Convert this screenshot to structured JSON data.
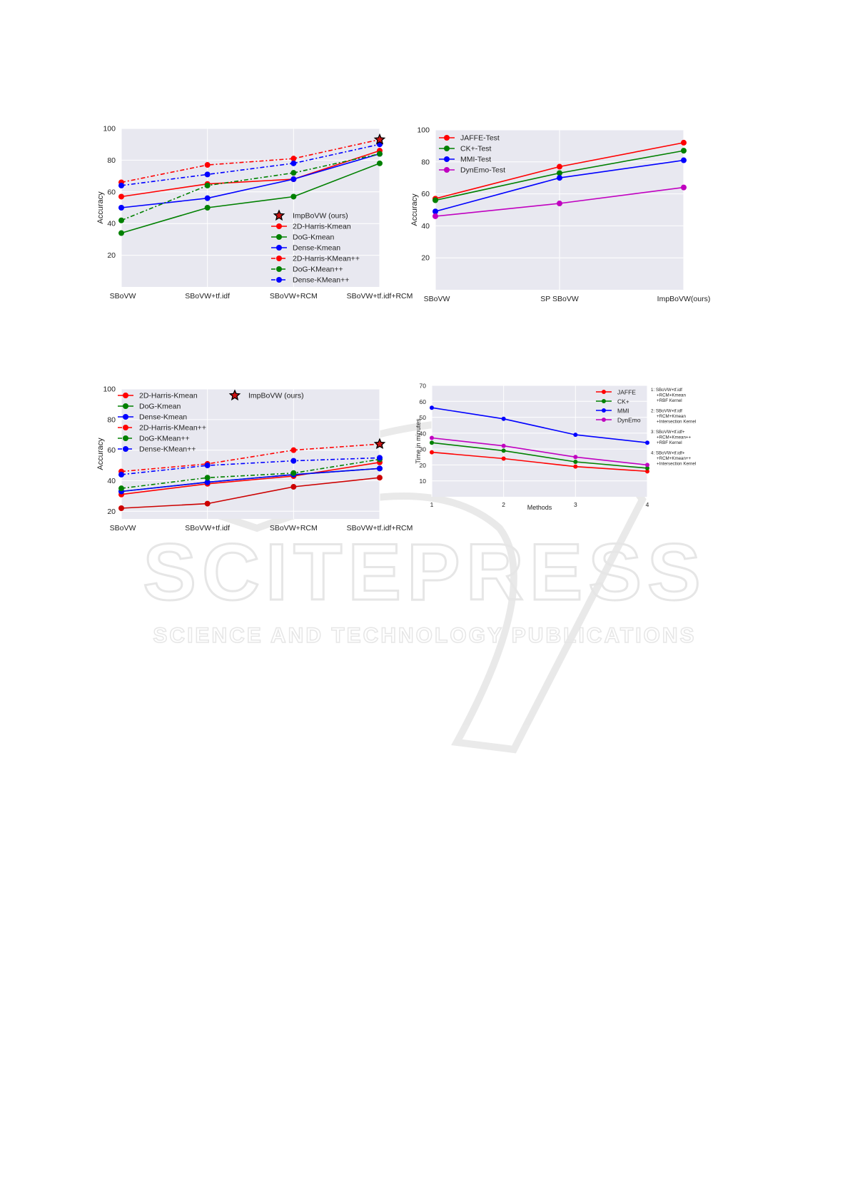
{
  "watermark": {
    "main": "SCITEPRESS",
    "sub": "SCIENCE AND TECHNOLOGY PUBLICATIONS"
  },
  "chart_data": [
    {
      "type": "line",
      "ylabel": "Accuracy",
      "categories": [
        "SBoVW",
        "SBoVW+tf.idf",
        "SBoVW+RCM",
        "SBoVW+tf.idf+RCM"
      ],
      "ylim": [
        0,
        100
      ],
      "yticks": [
        20,
        40,
        60,
        80,
        100
      ],
      "grid": true,
      "background": "#e8e8f0",
      "legend_position": "lower-right",
      "legend": [
        "ImpBoVW (ours)",
        "2D-Harris-Kmean",
        "DoG-Kmean",
        "Dense-Kmean",
        "2D-Harris-KMean++",
        "DoG-KMean++",
        "Dense-KMean++"
      ],
      "series": [
        {
          "name": "2D-Harris-Kmean",
          "color": "#ff0000",
          "style": "solid",
          "values": [
            57,
            65,
            68,
            86
          ]
        },
        {
          "name": "DoG-Kmean",
          "color": "#008000",
          "style": "solid",
          "values": [
            34,
            50,
            57,
            78
          ]
        },
        {
          "name": "Dense-Kmean",
          "color": "#0000ff",
          "style": "solid",
          "values": [
            50,
            56,
            68,
            84
          ]
        },
        {
          "name": "2D-Harris-KMean++",
          "color": "#ff0000",
          "style": "dashdot",
          "values": [
            66,
            77,
            81,
            93
          ]
        },
        {
          "name": "DoG-KMean++",
          "color": "#008000",
          "style": "dashdot",
          "values": [
            42,
            64,
            72,
            84
          ]
        },
        {
          "name": "Dense-KMean++",
          "color": "#0000ff",
          "style": "dashdot",
          "values": [
            64,
            71,
            78,
            90
          ]
        }
      ],
      "star": {
        "name": "ImpBoVW (ours)",
        "category": "SBoVW+tf.idf+RCM",
        "value": 93
      }
    },
    {
      "type": "line",
      "ylabel": "Accuracy",
      "categories": [
        "SBoVW",
        "SP SBoVW",
        "ImpBoVW(ours)"
      ],
      "ylim": [
        0,
        100
      ],
      "yticks": [
        20,
        40,
        60,
        80,
        100
      ],
      "grid": true,
      "background": "#e8e8f0",
      "legend_position": "top-left",
      "legend": [
        "JAFFE-Test",
        "CK+-Test",
        "MMI-Test",
        "DynEmo-Test"
      ],
      "series": [
        {
          "name": "JAFFE-Test",
          "color": "#ff0000",
          "style": "solid",
          "values": [
            57,
            77,
            92
          ]
        },
        {
          "name": "CK+-Test",
          "color": "#008000",
          "style": "solid",
          "values": [
            56,
            73,
            87
          ]
        },
        {
          "name": "MMI-Test",
          "color": "#0000ff",
          "style": "solid",
          "values": [
            49,
            70,
            81
          ]
        },
        {
          "name": "DynEmo-Test",
          "color": "#c000c0",
          "style": "solid",
          "values": [
            46,
            54,
            64
          ]
        }
      ]
    },
    {
      "type": "line",
      "ylabel": "Accuracy",
      "categories": [
        "SBoVW",
        "SBoVW+tf.idf",
        "SBoVW+RCM",
        "SBoVW+tf.idf+RCM"
      ],
      "ylim": [
        15,
        100
      ],
      "yticks": [
        20,
        40,
        60,
        80,
        100
      ],
      "grid": true,
      "background": "#e8e8f0",
      "legend_position": "top-left",
      "legend": [
        "2D-Harris-Kmean",
        "DoG-Kmean",
        "Dense-Kmean",
        "2D-Harris-KMean++",
        "DoG-KMean++",
        "Dense-KMean++",
        "ImpBoVW (ours)"
      ],
      "series": [
        {
          "name": "2D-Harris-Kmean",
          "color": "#ff0000",
          "style": "solid",
          "values": [
            31,
            38,
            43,
            52
          ]
        },
        {
          "name": "DoG-Kmean",
          "color": "#008000",
          "style": "solid",
          "values": [
            33,
            39,
            44,
            48
          ]
        },
        {
          "name": "Dense-Kmean",
          "color": "#0000ff",
          "style": "solid",
          "values": [
            33,
            39,
            44,
            48
          ]
        },
        {
          "name": "2D-Harris-KMean++",
          "color": "#ff0000",
          "style": "dashdot",
          "values": [
            46,
            51,
            60,
            64
          ]
        },
        {
          "name": "DoG-KMean++",
          "color": "#008000",
          "style": "dashdot",
          "values": [
            35,
            42,
            45,
            54
          ]
        },
        {
          "name": "Dense-KMean++",
          "color": "#0000ff",
          "style": "dashdot",
          "values": [
            44,
            50,
            53,
            55
          ]
        },
        {
          "name": "",
          "color": "#cc0000",
          "style": "solid",
          "values": [
            22,
            25,
            36,
            42
          ]
        }
      ],
      "star": {
        "name": "ImpBoVW (ours)",
        "category": "SBoVW+tf.idf+RCM",
        "value": 64
      }
    },
    {
      "type": "line",
      "xlabel": "Methods",
      "ylabel": "Time in minutes",
      "categories": [
        "1",
        "2",
        "3",
        "4"
      ],
      "ylim": [
        0,
        70
      ],
      "yticks": [
        10,
        20,
        30,
        40,
        50,
        60,
        70
      ],
      "grid": true,
      "background": "#e8e8f0",
      "legend_position": "top-right",
      "legend": [
        "JAFFE",
        "CK+",
        "MMI",
        "DynEmo"
      ],
      "series": [
        {
          "name": "JAFFE",
          "color": "#ff0000",
          "style": "solid",
          "values": [
            28,
            24,
            19,
            16
          ]
        },
        {
          "name": "CK+",
          "color": "#008000",
          "style": "solid",
          "values": [
            34,
            29,
            22,
            18
          ]
        },
        {
          "name": "MMI",
          "color": "#0000ff",
          "style": "solid",
          "values": [
            56,
            49,
            39,
            34
          ]
        },
        {
          "name": "DynEmo",
          "color": "#c000c0",
          "style": "solid",
          "values": [
            37,
            32,
            25,
            20
          ]
        }
      ],
      "notes": [
        [
          "1: SBoVW+tf.idf",
          "+RCM+Kmean",
          "+RBF Kernel"
        ],
        [
          "2: SBoVW+tf.idf",
          "+RCM+Kmean",
          "+Intersection Kernel"
        ],
        [
          "3: SBoVW+tf.idf+",
          "+RCM+Kmean++",
          "+RBF Kernel"
        ],
        [
          "4: SBoVW+tf.idf+",
          "+RCM+Kmean++",
          "+Intersection Kernel"
        ]
      ]
    }
  ]
}
